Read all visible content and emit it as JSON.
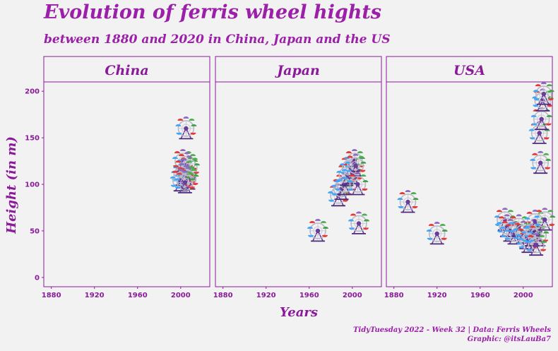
{
  "title": "Evolution of ferris wheel hights",
  "subtitle": "between 1880 and 2020 in China, Japan and the US",
  "caption": {
    "line1": "TidyTuesday 2022 - Week 32 | Data: Ferris Wheels",
    "line2": "Graphic: @itsLauBa7"
  },
  "marker_icon": "ferris-wheel-icon",
  "colors": {
    "accent": "#8b1a9b",
    "panel_bg": "#f2f2f2",
    "border": "#8b1a9b"
  },
  "chart_data": {
    "type": "scatter",
    "xlabel": "Years",
    "ylabel": "Height (in m)",
    "xlim": [
      1873,
      2027
    ],
    "ylim": [
      -10,
      210
    ],
    "x_ticks": [
      1880,
      1920,
      1960,
      2000
    ],
    "y_ticks": [
      0,
      50,
      100,
      150,
      200
    ],
    "grid": false,
    "facets": [
      {
        "name": "China",
        "points": [
          {
            "x": 2005,
            "y": 160
          },
          {
            "x": 2002,
            "y": 125
          },
          {
            "x": 2006,
            "y": 122
          },
          {
            "x": 2008,
            "y": 118
          },
          {
            "x": 2003,
            "y": 115
          },
          {
            "x": 2001,
            "y": 110
          },
          {
            "x": 2005,
            "y": 108
          },
          {
            "x": 2007,
            "y": 106
          },
          {
            "x": 2000,
            "y": 104
          },
          {
            "x": 2004,
            "y": 102
          }
        ]
      },
      {
        "name": "Japan",
        "points": [
          {
            "x": 1968,
            "y": 50
          },
          {
            "x": 1987,
            "y": 88
          },
          {
            "x": 1990,
            "y": 95
          },
          {
            "x": 1993,
            "y": 100
          },
          {
            "x": 1995,
            "y": 110
          },
          {
            "x": 1998,
            "y": 118
          },
          {
            "x": 2000,
            "y": 112
          },
          {
            "x": 2002,
            "y": 125
          },
          {
            "x": 2003,
            "y": 120
          },
          {
            "x": 2005,
            "y": 100
          },
          {
            "x": 2006,
            "y": 58
          }
        ]
      },
      {
        "name": "USA",
        "points": [
          {
            "x": 1893,
            "y": 81
          },
          {
            "x": 1920,
            "y": 47
          },
          {
            "x": 1983,
            "y": 62
          },
          {
            "x": 1985,
            "y": 55
          },
          {
            "x": 1988,
            "y": 50
          },
          {
            "x": 1992,
            "y": 47
          },
          {
            "x": 1996,
            "y": 55
          },
          {
            "x": 2000,
            "y": 48
          },
          {
            "x": 2003,
            "y": 42
          },
          {
            "x": 2005,
            "y": 38
          },
          {
            "x": 2008,
            "y": 45
          },
          {
            "x": 2010,
            "y": 50
          },
          {
            "x": 2011,
            "y": 60
          },
          {
            "x": 2014,
            "y": 45
          },
          {
            "x": 2016,
            "y": 123
          },
          {
            "x": 2015,
            "y": 155
          },
          {
            "x": 2017,
            "y": 170
          },
          {
            "x": 2018,
            "y": 190
          },
          {
            "x": 2019,
            "y": 197
          },
          {
            "x": 2020,
            "y": 62
          },
          {
            "x": 2012,
            "y": 35
          }
        ]
      }
    ]
  }
}
